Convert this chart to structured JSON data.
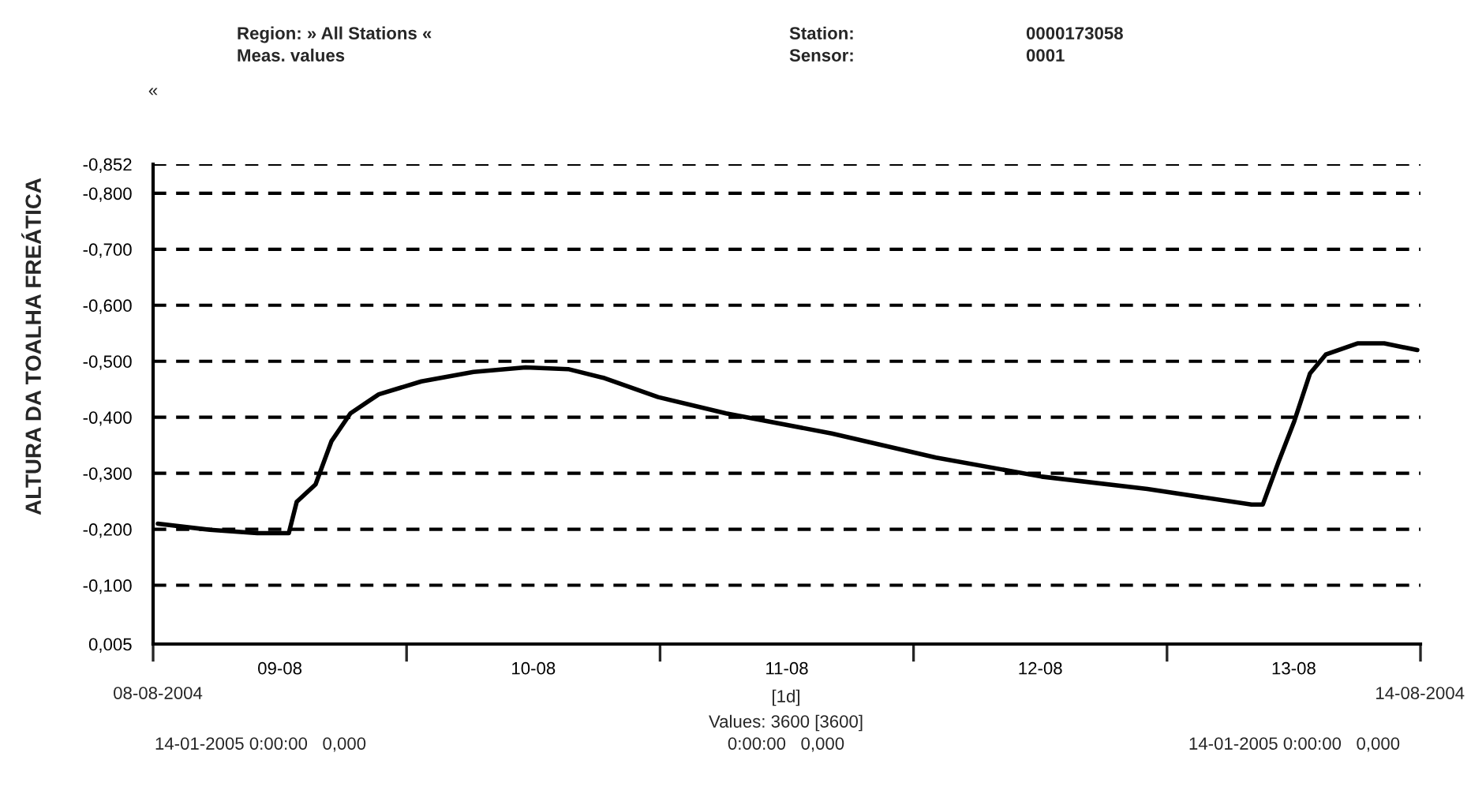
{
  "chart_data": {
    "type": "line",
    "ylabel": "ALTURA DA TOALHA FREÁTICA",
    "x": [
      "2004-08-09T00:27",
      "2004-08-09T05:23",
      "2004-08-09T09:52",
      "2004-08-09T12:51",
      "2004-08-09T13:36",
      "2004-08-09T15:23",
      "2004-08-09T16:53",
      "2004-08-09T18:41",
      "2004-08-09T21:22",
      "2004-08-10T01:24",
      "2004-08-10T06:20",
      "2004-08-10T11:16",
      "2004-08-10T15:18",
      "2004-08-10T18:44",
      "2004-08-10T23:49",
      "2004-08-11T06:15",
      "2004-08-11T16:16",
      "2004-08-12T02:07",
      "2004-08-12T12:08",
      "2004-08-12T22:08",
      "2004-08-13T08:00",
      "2004-08-13T09:04",
      "2004-08-13T10:33",
      "2004-08-13T12:03",
      "2004-08-13T13:32",
      "2004-08-13T15:02",
      "2004-08-13T18:02",
      "2004-08-13T20:34",
      "2004-08-13T23:42"
    ],
    "series": [
      {
        "color": "#000000",
        "values": [
          -0.21,
          -0.199,
          -0.193,
          -0.193,
          -0.249,
          -0.28,
          -0.357,
          -0.407,
          -0.441,
          -0.464,
          -0.481,
          -0.489,
          -0.486,
          -0.47,
          -0.436,
          -0.407,
          -0.371,
          -0.328,
          -0.294,
          -0.272,
          -0.244,
          -0.244,
          -0.32,
          -0.393,
          -0.478,
          -0.512,
          -0.532,
          -0.532,
          -0.52
        ]
      }
    ],
    "xlim": [
      "2004-08-09",
      "2004-08-14"
    ],
    "xticks": [
      {
        "value": "2004-08-09",
        "label": null
      },
      {
        "value": "2004-08-09T12:00",
        "label": "09-08"
      },
      {
        "value": "2004-08-10",
        "label": null
      },
      {
        "value": "2004-08-10T12:00",
        "label": "10-08"
      },
      {
        "value": "2004-08-11",
        "label": null
      },
      {
        "value": "2004-08-11T12:00",
        "label": "11-08"
      },
      {
        "value": "2004-08-12",
        "label": null
      },
      {
        "value": "2004-08-12T12:00",
        "label": "12-08"
      },
      {
        "value": "2004-08-13",
        "label": null
      },
      {
        "value": "2004-08-13T12:00",
        "label": "13-08"
      },
      {
        "value": "2004-08-14",
        "label": null
      }
    ],
    "ylim": [
      0.005,
      -0.852
    ],
    "yticks": [
      {
        "value": 0.005,
        "label": "0,005"
      },
      {
        "value": -0.1,
        "label": "-0,100"
      },
      {
        "value": -0.2,
        "label": "-0,200"
      },
      {
        "value": -0.3,
        "label": "-0,300"
      },
      {
        "value": -0.4,
        "label": "-0,400"
      },
      {
        "value": -0.5,
        "label": "-0,500"
      },
      {
        "value": -0.6,
        "label": "-0,600"
      },
      {
        "value": -0.7,
        "label": "-0,700"
      },
      {
        "value": -0.8,
        "label": "-0,800"
      },
      {
        "value": -0.852,
        "label": "-0,852"
      }
    ],
    "grid": "y",
    "line_style": "solid",
    "marker": "none",
    "legend": false,
    "annotations": [
      "Region: » All Stations «",
      "Meas. values",
      "Station:",
      "0000173058",
      "Sensor:",
      "0001",
      "«",
      "08-08-2004",
      "14-08-2004",
      "[1d]",
      "Values: 3600 [3600]",
      "14-01-2005 0:00:00   0,000",
      "0:00:00   0,000",
      "14-01-2005 0:00:00   0,000"
    ]
  }
}
